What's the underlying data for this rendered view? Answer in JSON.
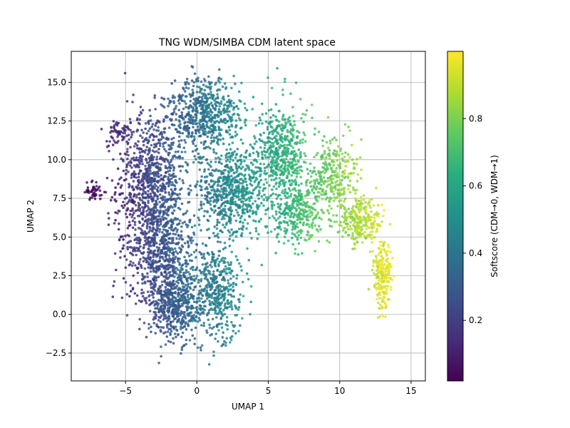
{
  "chart_data": {
    "type": "scatter",
    "title": "TNG WDM/SIMBA CDM latent space",
    "xlabel": "UMAP 1",
    "ylabel": "UMAP 2",
    "xlim": [
      -8.8,
      16.0
    ],
    "ylim": [
      -4.3,
      17.0
    ],
    "xticks": [
      -5,
      0,
      5,
      10,
      15
    ],
    "xtick_labels": [
      "−5",
      "0",
      "5",
      "10",
      "15"
    ],
    "yticks": [
      -2.5,
      0.0,
      2.5,
      5.0,
      7.5,
      10.0,
      12.5,
      15.0
    ],
    "ytick_labels": [
      "−2.5",
      "0.0",
      "2.5",
      "5.0",
      "7.5",
      "10.0",
      "12.5",
      "15.0"
    ],
    "grid": true,
    "colormap": "viridis",
    "colorbar": {
      "label": "Softscore (CDM→0, WDM→1)",
      "range": [
        0.02,
        1.0
      ],
      "ticks": [
        0.2,
        0.4,
        0.6,
        0.8
      ],
      "tick_labels": [
        "0.2",
        "0.4",
        "0.6",
        "0.8"
      ]
    },
    "point_color_rule": "softscore increases with UMAP 1: ~0.05 near x=-7, ~0.45 near x=2, ~0.75 near x=8, ~0.95 near x=13",
    "clusters": [
      {
        "center": [
          -3.2,
          8.5
        ],
        "spread": [
          2.2,
          4.3
        ],
        "weight": 0.17
      },
      {
        "center": [
          -2.5,
          4.0
        ],
        "spread": [
          2.3,
          3.0
        ],
        "weight": 0.12
      },
      {
        "center": [
          -1.5,
          0.5
        ],
        "spread": [
          1.8,
          2.2
        ],
        "weight": 0.1
      },
      {
        "center": [
          1.5,
          1.5
        ],
        "spread": [
          1.6,
          2.4
        ],
        "weight": 0.08
      },
      {
        "center": [
          0.5,
          13.0
        ],
        "spread": [
          2.5,
          2.0
        ],
        "weight": 0.12
      },
      {
        "center": [
          2.5,
          8.0
        ],
        "spread": [
          2.4,
          2.8
        ],
        "weight": 0.14
      },
      {
        "center": [
          6.0,
          10.5
        ],
        "spread": [
          1.6,
          2.6
        ],
        "weight": 0.09
      },
      {
        "center": [
          7.0,
          6.5
        ],
        "spread": [
          1.4,
          1.8
        ],
        "weight": 0.06
      },
      {
        "center": [
          9.5,
          9.0
        ],
        "spread": [
          1.4,
          2.4
        ],
        "weight": 0.06
      },
      {
        "center": [
          11.5,
          6.0
        ],
        "spread": [
          1.4,
          1.4
        ],
        "weight": 0.05
      },
      {
        "center": [
          13.0,
          2.5
        ],
        "spread": [
          0.6,
          2.0
        ],
        "weight": 0.04
      },
      {
        "center": [
          -7.2,
          8.0
        ],
        "spread": [
          0.6,
          0.6
        ],
        "weight": 0.01
      },
      {
        "center": [
          -5.5,
          11.8
        ],
        "spread": [
          0.8,
          0.6
        ],
        "weight": 0.01
      }
    ]
  }
}
